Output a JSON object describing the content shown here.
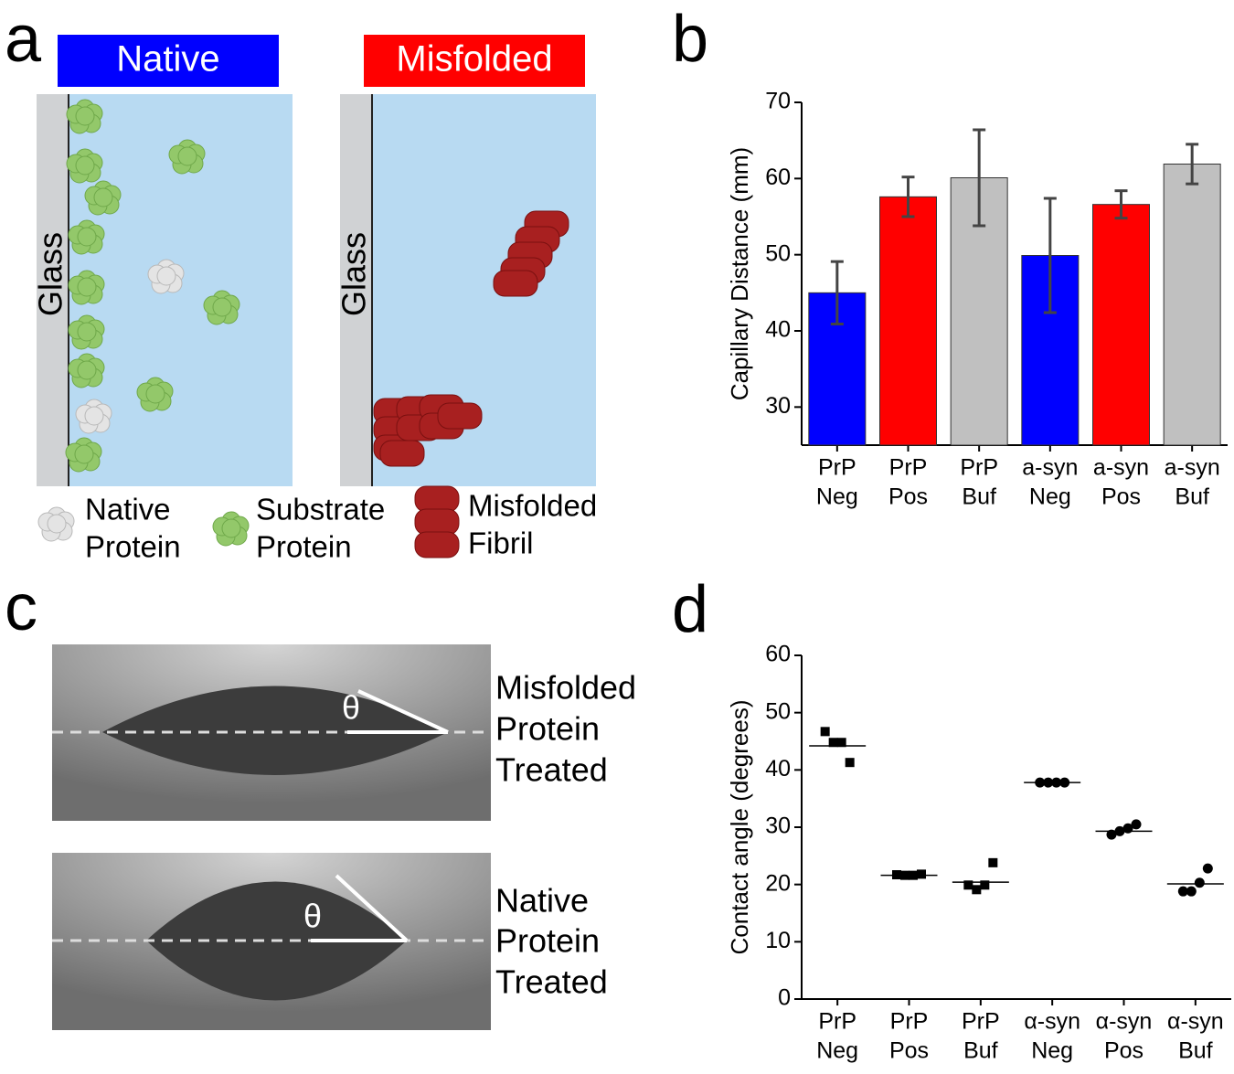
{
  "panel_labels": [
    "a",
    "b",
    "c",
    "d"
  ],
  "panel_a": {
    "headers": [
      "Native",
      "Misfolded"
    ],
    "surface_label": "Glass",
    "legend": [
      [
        "Native",
        "Protein"
      ],
      [
        "Substrate",
        "Protein"
      ],
      [
        "Misfolded",
        "Fibril"
      ]
    ]
  },
  "panel_c": {
    "angle_symbol": "θ",
    "captions": [
      [
        "Misfolded",
        "Protein",
        "Treated"
      ],
      [
        "Native",
        "Protein",
        "Treated"
      ]
    ]
  },
  "chart_data": [
    {
      "type": "bar",
      "ylabel": "Capillary Distance (mm)",
      "categories": [
        [
          "PrP",
          "Neg"
        ],
        [
          "PrP",
          "Pos"
        ],
        [
          "PrP",
          "Buf"
        ],
        [
          "a-syn",
          "Neg"
        ],
        [
          "a-syn",
          "Pos"
        ],
        [
          "a-syn",
          "Buf"
        ]
      ],
      "values": [
        45.0,
        57.6,
        60.1,
        49.9,
        56.6,
        61.9
      ],
      "errors": [
        4.1,
        2.6,
        6.3,
        7.5,
        1.8,
        2.6
      ],
      "colors": [
        "#0000ff",
        "#ff0000",
        "#c0c0c0",
        "#0000ff",
        "#ff0000",
        "#c0c0c0"
      ],
      "ylim": [
        25,
        70
      ],
      "yticks": [
        30,
        40,
        50,
        60,
        70
      ]
    },
    {
      "type": "strip",
      "ylabel": "Contact angle (degrees)",
      "categories": [
        [
          "PrP",
          "Neg"
        ],
        [
          "PrP",
          "Pos"
        ],
        [
          "PrP",
          "Buf"
        ],
        [
          "α-syn",
          "Neg"
        ],
        [
          "α-syn",
          "Pos"
        ],
        [
          "α-syn",
          "Buf"
        ]
      ],
      "points": [
        [
          46.7,
          44.8,
          44.8,
          41.3
        ],
        [
          21.7,
          21.6,
          21.6,
          21.8
        ],
        [
          19.9,
          19.1,
          19.9,
          23.8
        ],
        [
          37.8,
          37.8,
          37.8,
          37.8
        ],
        [
          28.7,
          29.3,
          29.8,
          30.5
        ],
        [
          18.8,
          18.8,
          20.3,
          22.8
        ]
      ],
      "means": [
        44.2,
        21.6,
        20.4,
        37.8,
        29.3,
        20.1
      ],
      "markers": [
        "square",
        "square",
        "square",
        "circle",
        "circle",
        "circle"
      ],
      "color": "#000000",
      "ylim": [
        0,
        60
      ],
      "yticks": [
        0,
        10,
        20,
        30,
        40,
        50,
        60
      ]
    }
  ]
}
